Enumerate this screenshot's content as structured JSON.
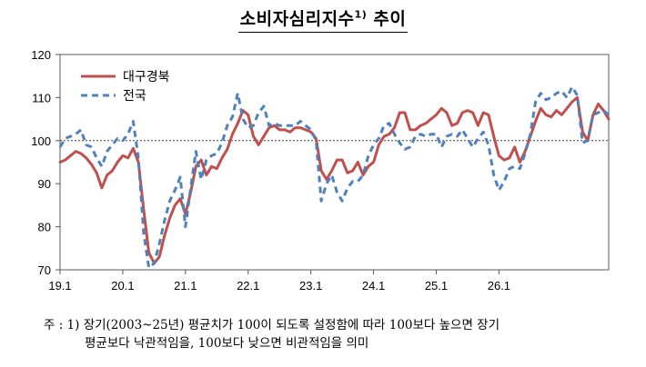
{
  "header": {
    "title": "소비자심리지수",
    "title_sup": "1)",
    "title_suffix": " 추이"
  },
  "chart_data": {
    "type": "line",
    "x_tick_labels": [
      "19.1",
      "20.1",
      "21.1",
      "22.1",
      "23.1",
      "24.1",
      "25.1",
      "26.1"
    ],
    "ylim": [
      70,
      120
    ],
    "yticks": [
      70,
      80,
      90,
      100,
      110,
      120
    ],
    "reference_line": 100,
    "legend_position": "top-left",
    "grid": false,
    "series": [
      {
        "name": "대구경북",
        "color": "#c0504d",
        "style": "solid",
        "values": [
          95,
          95.5,
          96.5,
          97.5,
          97,
          96,
          94.5,
          92.5,
          89,
          92,
          93,
          95,
          96.5,
          96,
          98.2,
          95,
          84,
          74,
          71.5,
          73,
          78,
          82,
          85,
          86.5,
          83,
          88,
          94,
          95.5,
          92,
          94,
          93.5,
          96,
          98,
          101.5,
          104,
          107,
          106,
          101,
          99,
          101,
          103,
          103.5,
          102.5,
          102.5,
          102,
          103,
          103,
          102.5,
          102,
          100.5,
          93,
          91,
          93,
          95.5,
          95.5,
          92.5,
          93,
          95,
          92,
          94,
          95,
          99,
          101,
          101.5,
          103,
          106.5,
          106.5,
          102.5,
          102.5,
          103.5,
          104,
          105,
          106,
          107.5,
          106.5,
          103.5,
          104,
          106.5,
          107,
          106.5,
          103.5,
          106.5,
          106,
          101,
          96.5,
          95.5,
          96,
          98.5,
          95,
          97.5,
          101,
          104.5,
          107.5,
          106,
          105.5,
          107,
          106,
          107.5,
          109,
          110,
          102,
          100,
          106,
          108.5,
          107,
          105
        ]
      },
      {
        "name": "전국",
        "color": "#4f81bd",
        "style": "dashed",
        "values": [
          98.5,
          100.5,
          101,
          101.5,
          102.5,
          99,
          98.5,
          96,
          94,
          97.5,
          99,
          100.5,
          100,
          101.5,
          104.5,
          96,
          78.5,
          70.5,
          71.5,
          76,
          81.5,
          86,
          88.5,
          91.5,
          80,
          89,
          97.5,
          91,
          95.5,
          96.5,
          97,
          99.5,
          103.5,
          105.5,
          111,
          105,
          103,
          103.5,
          106.5,
          108,
          103.5,
          104,
          103.5,
          103.5,
          103.5,
          103.5,
          104.5,
          103.5,
          102.5,
          100,
          86,
          90,
          92,
          88,
          86,
          89,
          90.5,
          90.5,
          92,
          96.5,
          99,
          100.5,
          103.5,
          104,
          101.5,
          99.5,
          98,
          98.5,
          101,
          101.5,
          101,
          101.5,
          101.5,
          98.5,
          101,
          101.5,
          101,
          102.5,
          100.5,
          98.5,
          100.5,
          102,
          99,
          92,
          88.5,
          90.5,
          93.5,
          94,
          93.5,
          97,
          101.5,
          109,
          111,
          109.5,
          110,
          111,
          111.5,
          110,
          112.5,
          110.5,
          99.5,
          100,
          106,
          106.5,
          107,
          106
        ]
      }
    ]
  },
  "note": {
    "line1": "주 : 1) 장기(2003~25년) 평균치가 100이 되도록 설정함에 따라 100보다 높으면 장기",
    "line2": "평균보다 낙관적임을, 100보다 낮으면 비관적임을 의미"
  }
}
